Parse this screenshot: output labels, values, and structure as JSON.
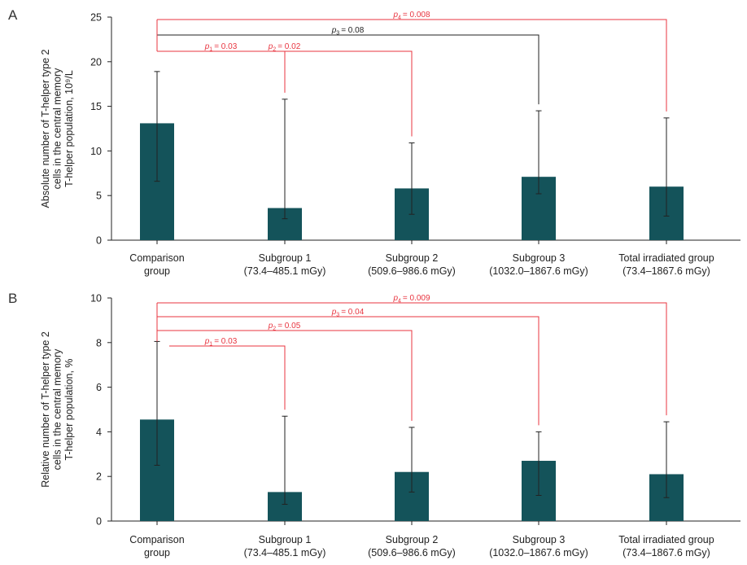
{
  "colors": {
    "bar": "#14535a",
    "significant": "#e8343f",
    "nonsignificant": "#222222"
  },
  "categories": [
    [
      "Comparison",
      "group"
    ],
    [
      "Subgroup 1",
      "(73.4–485.1 mGy)"
    ],
    [
      "Subgroup 2",
      "(509.6–986.6 mGy)"
    ],
    [
      "Subgroup 3",
      "(1032.0–1867.6 mGy)"
    ],
    [
      "Total irradiated group",
      "(73.4–1867.6 mGy)"
    ]
  ],
  "chart_data": [
    {
      "panel": "A",
      "type": "bar",
      "ylabel": [
        "Absolute number of T-helper type 2",
        "cells in the central memory",
        "T-helper population, 10⁹/L"
      ],
      "ylim": [
        0,
        25
      ],
      "yticks": [
        0,
        5,
        10,
        15,
        20,
        25
      ],
      "values": [
        13.1,
        3.6,
        5.8,
        7.1,
        6.0
      ],
      "error_low": [
        6.6,
        2.4,
        2.9,
        5.2,
        2.7
      ],
      "error_high": [
        18.9,
        15.8,
        10.9,
        14.5,
        13.7
      ],
      "comparisons": [
        {
          "label": "p",
          "sub": "1",
          "text": "= 0.03",
          "to": 1,
          "significant": true
        },
        {
          "label": "p",
          "sub": "2",
          "text": "= 0.02",
          "to": 2,
          "significant": true
        },
        {
          "label": "p",
          "sub": "3",
          "text": "= 0.08",
          "to": 3,
          "significant": false
        },
        {
          "label": "p",
          "sub": "4",
          "text": "= 0.008",
          "to": 4,
          "significant": true
        }
      ]
    },
    {
      "panel": "B",
      "type": "bar",
      "ylabel": [
        "Relative number of T-helper type 2",
        "cells in the central memory",
        "T-helper population, %"
      ],
      "ylim": [
        0,
        10
      ],
      "yticks": [
        0,
        2,
        4,
        6,
        8,
        10
      ],
      "values": [
        4.55,
        1.3,
        2.2,
        2.7,
        2.1
      ],
      "error_low": [
        2.5,
        0.75,
        1.3,
        1.15,
        1.05
      ],
      "error_high": [
        8.05,
        4.7,
        4.2,
        4.0,
        4.45
      ],
      "comparisons": [
        {
          "label": "p",
          "sub": "1",
          "text": "= 0.03",
          "to": 1,
          "significant": true
        },
        {
          "label": "p",
          "sub": "2",
          "text": "= 0.05",
          "to": 2,
          "significant": true
        },
        {
          "label": "p",
          "sub": "3",
          "text": "= 0.04",
          "to": 3,
          "significant": true
        },
        {
          "label": "p",
          "sub": "4",
          "text": "= 0.009",
          "to": 4,
          "significant": true
        }
      ]
    }
  ]
}
